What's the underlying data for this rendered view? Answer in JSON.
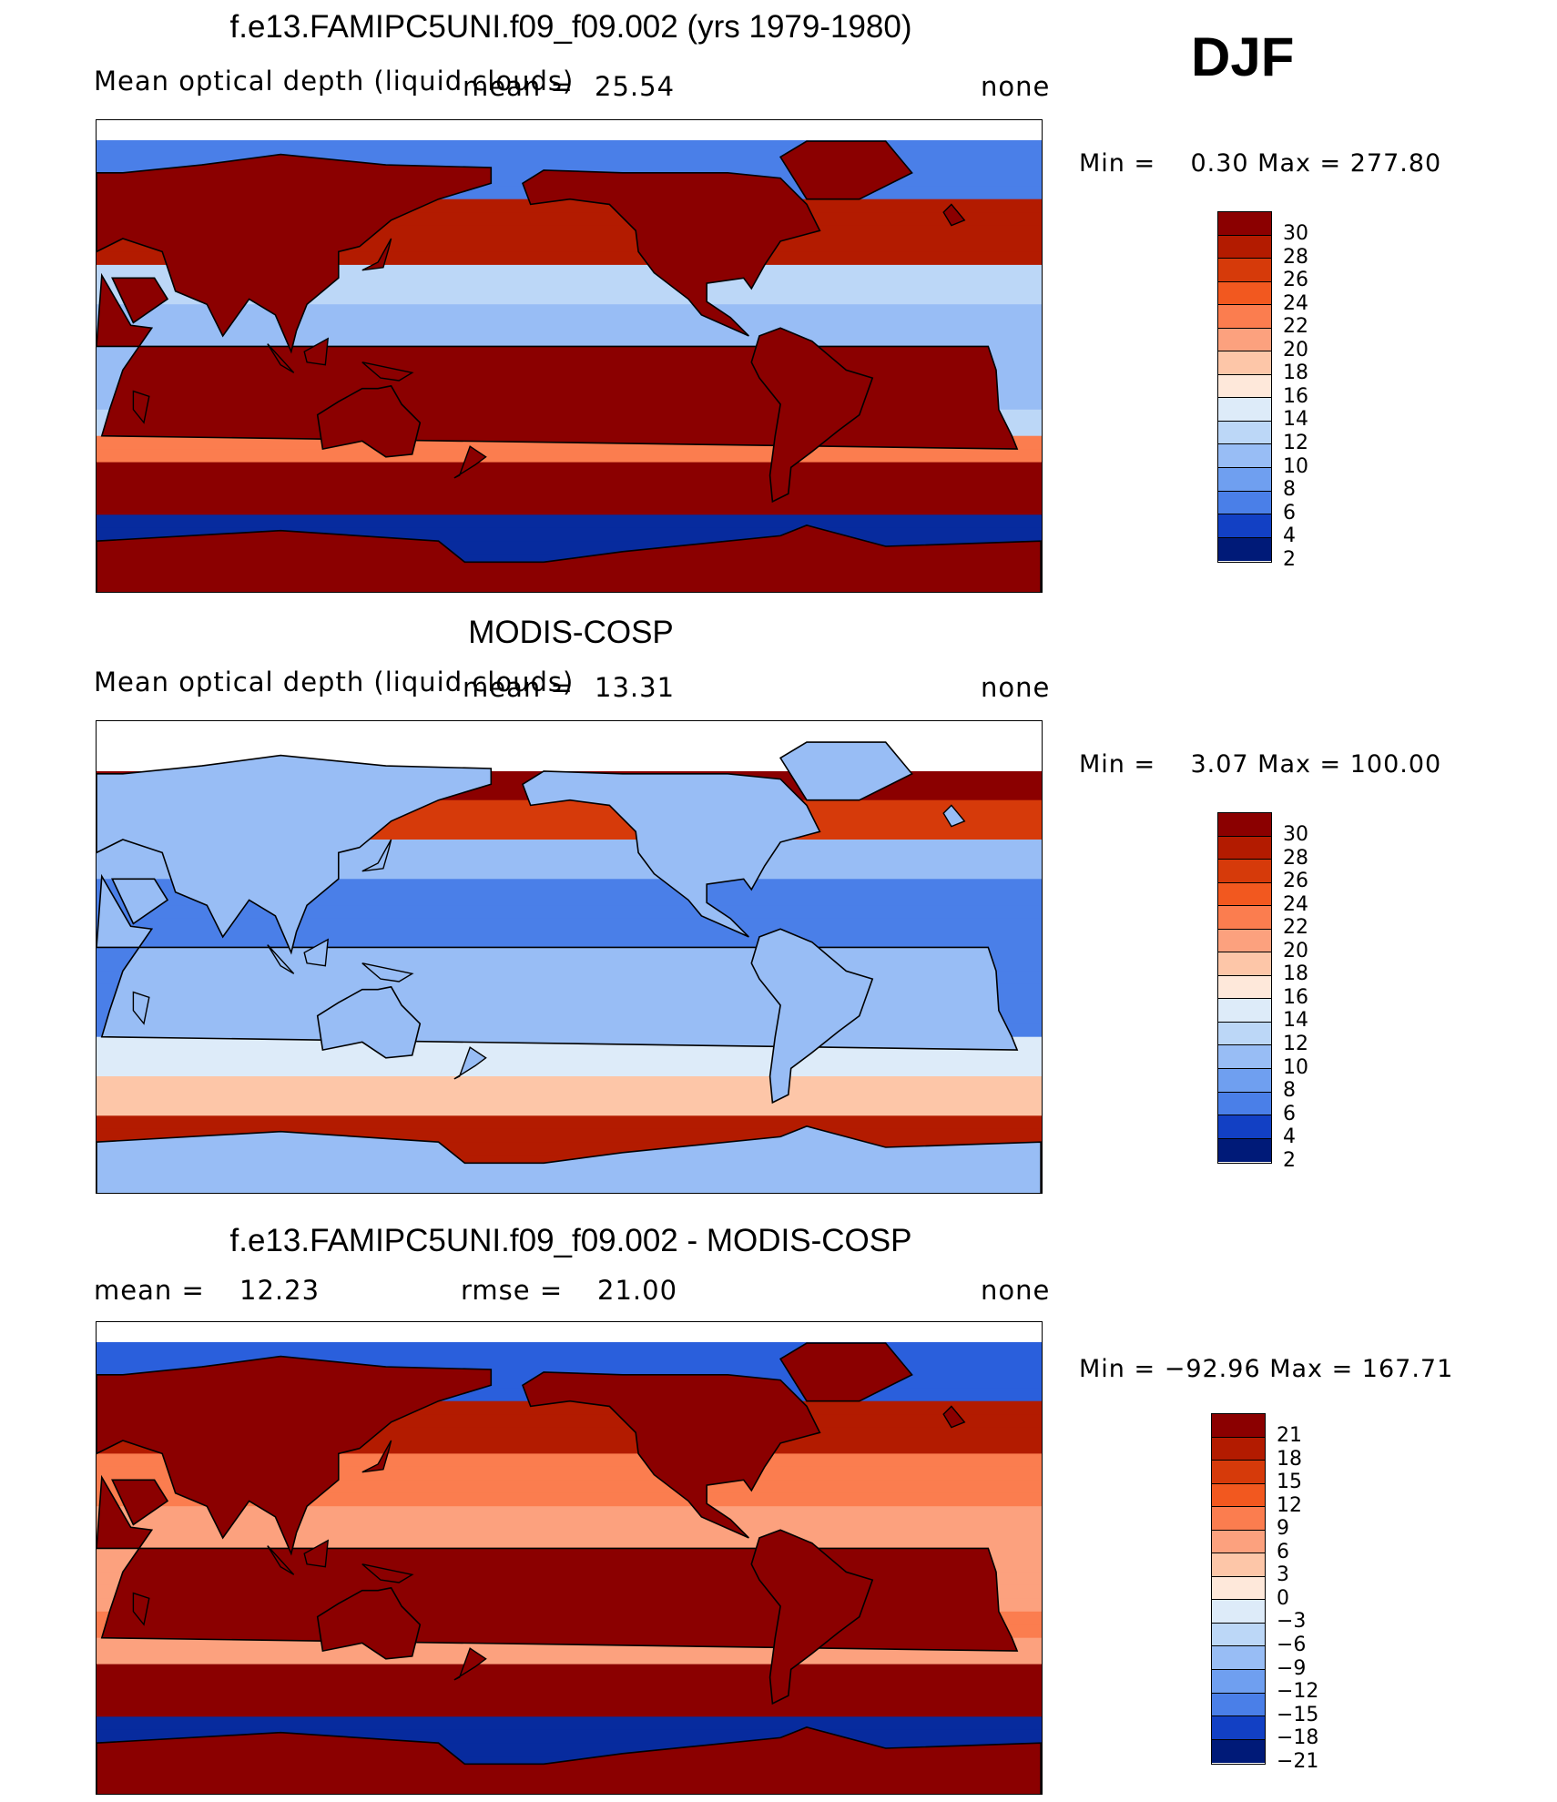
{
  "season": "DJF",
  "panels": [
    {
      "title": "f.e13.FAMIPC5UNI.f09_f09.002 (yrs 1979-1980)",
      "variable": "Mean optical depth (liquid clouds)",
      "mean_label": "mean =",
      "mean_value": "25.54",
      "units": "none",
      "minmax": "Min =    0.30 Max = 277.80",
      "colorbar": [
        "30",
        "28",
        "26",
        "24",
        "22",
        "20",
        "18",
        "16",
        "14",
        "12",
        "10",
        "8",
        "6",
        "4",
        "2"
      ]
    },
    {
      "title": "MODIS-COSP",
      "variable": "Mean optical depth (liquid clouds)",
      "mean_label": "mean =",
      "mean_value": "13.31",
      "units": "none",
      "minmax": "Min =    3.07 Max = 100.00",
      "colorbar": [
        "30",
        "28",
        "26",
        "24",
        "22",
        "20",
        "18",
        "16",
        "14",
        "12",
        "10",
        "8",
        "6",
        "4",
        "2"
      ]
    },
    {
      "title": "f.e13.FAMIPC5UNI.f09_f09.002 - MODIS-COSP",
      "mean_label": "mean =",
      "mean_value": "12.23",
      "rmse_label": "rmse =",
      "rmse_value": "21.00",
      "units": "none",
      "minmax": "Min = −92.96 Max = 167.71",
      "colorbar": [
        "21",
        "18",
        "15",
        "12",
        "9",
        "6",
        "3",
        "0",
        "−3",
        "−6",
        "−9",
        "−12",
        "−15",
        "−18",
        "−21"
      ]
    }
  ],
  "colors": {
    "levels": [
      "#8b0000",
      "#b31b00",
      "#d63a0a",
      "#f2581f",
      "#fb7d4f",
      "#fca17e",
      "#fdc6a8",
      "#fee8da",
      "#ddebf9",
      "#bcd7f7",
      "#98bdf5",
      "#6f9ff0",
      "#4a7fe8",
      "#2a5fdc",
      "#1240c4",
      "#072b9e",
      "#001a78"
    ]
  }
}
